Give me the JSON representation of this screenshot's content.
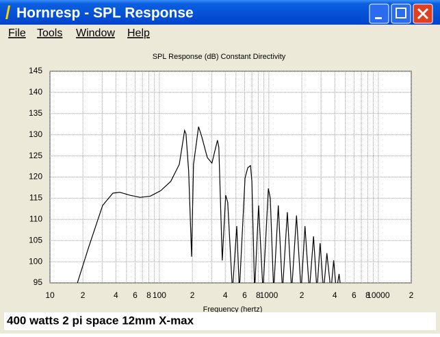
{
  "window": {
    "title": "Hornresp - SPL Response",
    "menu": [
      "File",
      "Tools",
      "Window",
      "Help"
    ]
  },
  "chart_data": {
    "type": "line",
    "title": "SPL Response (dB)   Constant Directivity",
    "x_label": "Frequency (hertz)",
    "log_x": true,
    "grid": true,
    "xlim": [
      10,
      20000
    ],
    "ylim": [
      95,
      145
    ],
    "xticks": [
      10,
      {
        "value": 20,
        "label": "2"
      },
      {
        "value": 30,
        "label": null
      },
      {
        "value": 40,
        "label": "4"
      },
      {
        "value": 50,
        "label": null
      },
      {
        "value": 60,
        "label": "6"
      },
      {
        "value": 70,
        "label": null
      },
      {
        "value": 80,
        "label": "8"
      },
      {
        "value": 90,
        "label": null
      },
      100,
      {
        "value": 200,
        "label": "2"
      },
      {
        "value": 300,
        "label": null
      },
      {
        "value": 400,
        "label": "4"
      },
      {
        "value": 500,
        "label": null
      },
      {
        "value": 600,
        "label": "6"
      },
      {
        "value": 700,
        "label": null
      },
      {
        "value": 800,
        "label": "8"
      },
      {
        "value": 900,
        "label": null
      },
      1000,
      {
        "value": 2000,
        "label": "2"
      },
      {
        "value": 3000,
        "label": null
      },
      {
        "value": 4000,
        "label": "4"
      },
      {
        "value": 5000,
        "label": null
      },
      {
        "value": 6000,
        "label": "6"
      },
      {
        "value": 7000,
        "label": null
      },
      {
        "value": 8000,
        "label": "8"
      },
      {
        "value": 9000,
        "label": null
      },
      10000,
      {
        "value": 20000,
        "label": "2"
      }
    ],
    "yticks": [
      95,
      100,
      105,
      110,
      115,
      120,
      125,
      130,
      135,
      140,
      145
    ],
    "x": [
      17.8,
      22.7,
      30.3,
      37.6,
      43.4,
      53.9,
      66.8,
      82.8,
      103,
      127,
      152,
      170,
      175,
      185,
      197,
      205,
      228,
      244,
      274,
      302,
      339,
      349,
      375,
      403,
      421,
      465,
      509,
      538,
      606,
      642,
      680,
      700,
      741,
      806,
      883,
      990,
      1030,
      1106,
      1220,
      1331,
      1475,
      1615,
      1788,
      1970,
      2140,
      2345,
      2560,
      2750,
      2940,
      3160,
      3390,
      3690,
      3910,
      4140,
      4380,
      4570
    ],
    "series": [
      {
        "name": "SPL",
        "color": "#000000",
        "values": [
          95,
          103.6,
          113.3,
          116.2,
          116.4,
          115.7,
          115.2,
          115.5,
          116.8,
          119,
          123,
          131,
          130.2,
          121.4,
          101.2,
          123,
          131.9,
          129.5,
          124.6,
          123.3,
          128.7,
          127,
          100.3,
          115.7,
          114,
          93,
          108.4,
          93,
          119.8,
          122.2,
          122.7,
          119,
          93,
          113.3,
          93,
          117.3,
          115,
          93,
          113.3,
          93,
          111.7,
          93,
          110.9,
          93,
          108.4,
          93,
          106,
          93,
          104.4,
          93,
          102,
          93,
          100.3,
          93,
          97.1,
          93
        ]
      }
    ]
  },
  "note": "400 watts 2 pi space 12mm X-max"
}
